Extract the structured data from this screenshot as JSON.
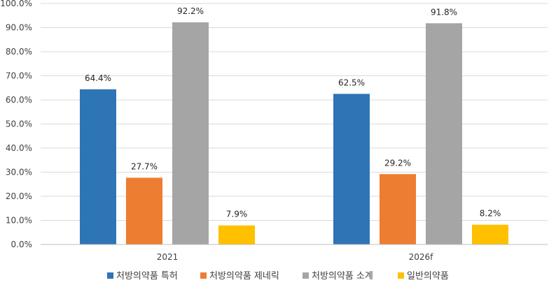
{
  "chart_data": {
    "type": "bar",
    "categories": [
      "2021",
      "2026f"
    ],
    "series": [
      {
        "name": "처방의약품 특허",
        "color": "#2E75B6",
        "values": [
          64.4,
          62.5
        ],
        "labels": [
          "64.4%",
          "62.5%"
        ]
      },
      {
        "name": "처방의약품 제네릭",
        "color": "#ED7D31",
        "values": [
          27.7,
          29.2
        ],
        "labels": [
          "27.7%",
          "29.2%"
        ]
      },
      {
        "name": "처방의약품 소계",
        "color": "#A5A5A5",
        "values": [
          92.2,
          91.8
        ],
        "labels": [
          "92.2%",
          "91.8%"
        ]
      },
      {
        "name": "일반의약품",
        "color": "#FFC000",
        "values": [
          7.9,
          8.2
        ],
        "labels": [
          "7.9%",
          "8.2%"
        ]
      }
    ],
    "ylim": [
      0,
      100
    ],
    "yticks": [
      "0.0%",
      "10.0%",
      "20.0%",
      "30.0%",
      "40.0%",
      "50.0%",
      "60.0%",
      "70.0%",
      "80.0%",
      "90.0%",
      "100.0%"
    ],
    "grid": true,
    "legend_position": "bottom"
  }
}
